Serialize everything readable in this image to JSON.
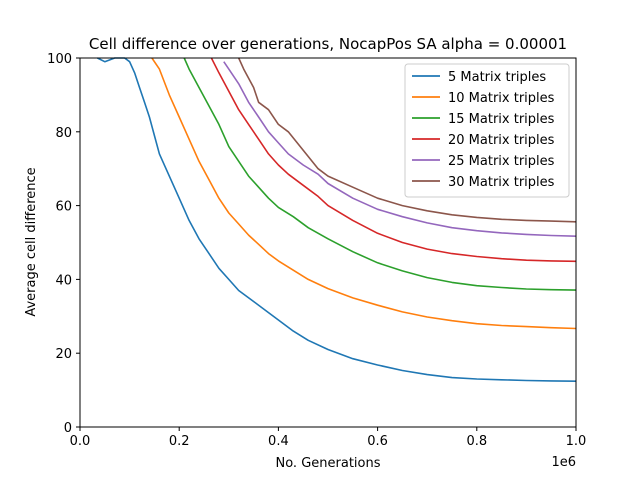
{
  "chart_data": {
    "type": "line",
    "title": "Cell difference over generations, NocapPos SA alpha = 0.00001",
    "xlabel": "No. Generations",
    "ylabel": "Average cell difference",
    "x_offset_label": "1e6",
    "xlim": [
      0,
      1.0
    ],
    "ylim": [
      0,
      100
    ],
    "x_ticks": [
      "0.0",
      "0.2",
      "0.4",
      "0.6",
      "0.8",
      "1.0"
    ],
    "y_ticks": [
      "0",
      "20",
      "40",
      "60",
      "80",
      "100"
    ],
    "grid": false,
    "legend_position": "top-right",
    "series": [
      {
        "name": "5 Matrix triples",
        "color": "#1f77b4",
        "points": [
          [
            0.035,
            100
          ],
          [
            0.05,
            99
          ],
          [
            0.07,
            101
          ],
          [
            0.09,
            100
          ],
          [
            0.1,
            99
          ],
          [
            0.11,
            96
          ],
          [
            0.12,
            92
          ],
          [
            0.13,
            88
          ],
          [
            0.14,
            84
          ],
          [
            0.15,
            79
          ],
          [
            0.16,
            74
          ],
          [
            0.18,
            68
          ],
          [
            0.2,
            62
          ],
          [
            0.22,
            56
          ],
          [
            0.24,
            51
          ],
          [
            0.26,
            47
          ],
          [
            0.28,
            43
          ],
          [
            0.3,
            40
          ],
          [
            0.32,
            37
          ],
          [
            0.35,
            34
          ],
          [
            0.38,
            31
          ],
          [
            0.4,
            29
          ],
          [
            0.43,
            26
          ],
          [
            0.46,
            23.5
          ],
          [
            0.5,
            21
          ],
          [
            0.55,
            18.5
          ],
          [
            0.6,
            16.8
          ],
          [
            0.65,
            15.3
          ],
          [
            0.7,
            14.2
          ],
          [
            0.75,
            13.4
          ],
          [
            0.8,
            13
          ],
          [
            0.85,
            12.8
          ],
          [
            0.9,
            12.6
          ],
          [
            0.95,
            12.5
          ],
          [
            1.0,
            12.4
          ]
        ]
      },
      {
        "name": "10 Matrix triples",
        "color": "#ff7f0e",
        "points": [
          [
            0.145,
            100
          ],
          [
            0.16,
            97
          ],
          [
            0.18,
            90
          ],
          [
            0.2,
            84
          ],
          [
            0.22,
            78
          ],
          [
            0.24,
            72
          ],
          [
            0.26,
            67
          ],
          [
            0.28,
            62
          ],
          [
            0.3,
            58
          ],
          [
            0.32,
            55
          ],
          [
            0.34,
            52
          ],
          [
            0.36,
            49.5
          ],
          [
            0.38,
            47
          ],
          [
            0.4,
            45
          ],
          [
            0.43,
            42.5
          ],
          [
            0.46,
            40
          ],
          [
            0.5,
            37.5
          ],
          [
            0.55,
            35
          ],
          [
            0.6,
            33
          ],
          [
            0.65,
            31.2
          ],
          [
            0.7,
            29.8
          ],
          [
            0.75,
            28.8
          ],
          [
            0.8,
            28
          ],
          [
            0.85,
            27.5
          ],
          [
            0.9,
            27.2
          ],
          [
            0.95,
            26.9
          ],
          [
            1.0,
            26.7
          ]
        ]
      },
      {
        "name": "15 Matrix triples",
        "color": "#2ca02c",
        "points": [
          [
            0.21,
            100
          ],
          [
            0.22,
            97
          ],
          [
            0.24,
            92
          ],
          [
            0.26,
            87
          ],
          [
            0.28,
            82
          ],
          [
            0.3,
            76
          ],
          [
            0.32,
            72
          ],
          [
            0.34,
            68
          ],
          [
            0.36,
            65
          ],
          [
            0.38,
            62
          ],
          [
            0.4,
            59.5
          ],
          [
            0.43,
            57
          ],
          [
            0.46,
            54
          ],
          [
            0.5,
            51
          ],
          [
            0.55,
            47.5
          ],
          [
            0.6,
            44.5
          ],
          [
            0.65,
            42.3
          ],
          [
            0.7,
            40.5
          ],
          [
            0.75,
            39.2
          ],
          [
            0.8,
            38.3
          ],
          [
            0.85,
            37.8
          ],
          [
            0.9,
            37.4
          ],
          [
            0.95,
            37.2
          ],
          [
            1.0,
            37.1
          ]
        ]
      },
      {
        "name": "20 Matrix triples",
        "color": "#d62728",
        "points": [
          [
            0.265,
            100
          ],
          [
            0.28,
            96
          ],
          [
            0.3,
            91
          ],
          [
            0.32,
            86
          ],
          [
            0.34,
            82
          ],
          [
            0.36,
            78
          ],
          [
            0.38,
            74
          ],
          [
            0.4,
            71
          ],
          [
            0.42,
            68.5
          ],
          [
            0.45,
            65.5
          ],
          [
            0.48,
            62.5
          ],
          [
            0.5,
            60
          ],
          [
            0.55,
            56
          ],
          [
            0.6,
            52.5
          ],
          [
            0.65,
            50
          ],
          [
            0.7,
            48.2
          ],
          [
            0.75,
            47
          ],
          [
            0.8,
            46.2
          ],
          [
            0.85,
            45.6
          ],
          [
            0.9,
            45.2
          ],
          [
            0.95,
            45
          ],
          [
            1.0,
            44.9
          ]
        ]
      },
      {
        "name": "25 Matrix triples",
        "color": "#9467bd",
        "points": [
          [
            0.29,
            99
          ],
          [
            0.3,
            97
          ],
          [
            0.32,
            93
          ],
          [
            0.34,
            88
          ],
          [
            0.36,
            84
          ],
          [
            0.38,
            80
          ],
          [
            0.4,
            77
          ],
          [
            0.42,
            74
          ],
          [
            0.45,
            71
          ],
          [
            0.48,
            68.5
          ],
          [
            0.5,
            66
          ],
          [
            0.55,
            62
          ],
          [
            0.6,
            59
          ],
          [
            0.65,
            57
          ],
          [
            0.7,
            55.3
          ],
          [
            0.75,
            54
          ],
          [
            0.8,
            53.2
          ],
          [
            0.85,
            52.6
          ],
          [
            0.9,
            52.2
          ],
          [
            0.95,
            51.9
          ],
          [
            1.0,
            51.7
          ]
        ]
      },
      {
        "name": "30 Matrix triples",
        "color": "#8c564b",
        "points": [
          [
            0.32,
            100
          ],
          [
            0.33,
            97
          ],
          [
            0.35,
            92
          ],
          [
            0.36,
            88
          ],
          [
            0.38,
            86
          ],
          [
            0.4,
            82
          ],
          [
            0.42,
            80
          ],
          [
            0.45,
            75
          ],
          [
            0.48,
            70
          ],
          [
            0.5,
            68
          ],
          [
            0.55,
            65
          ],
          [
            0.6,
            62
          ],
          [
            0.65,
            60
          ],
          [
            0.7,
            58.6
          ],
          [
            0.75,
            57.5
          ],
          [
            0.8,
            56.8
          ],
          [
            0.85,
            56.3
          ],
          [
            0.9,
            56
          ],
          [
            0.95,
            55.8
          ],
          [
            1.0,
            55.6
          ]
        ]
      }
    ]
  }
}
